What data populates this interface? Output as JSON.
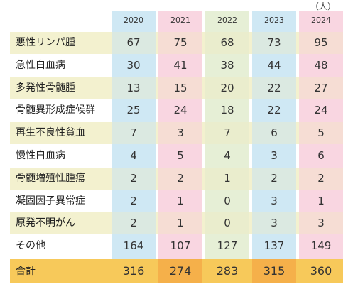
{
  "unit": "（人）",
  "years": [
    "2020",
    "2021",
    "2022",
    "2023",
    "2024"
  ],
  "column_colors": [
    "#cfe8f4",
    "#f9d6e1",
    "#e6efd6",
    "#cfe8f4",
    "#f9d6e1"
  ],
  "band_color": "#f3f1cf",
  "total_colors": [
    "#f7c95a",
    "#f5b04a",
    "#f7c95a",
    "#f5b04a",
    "#f7c95a"
  ],
  "total_label_color": "#f7c95a",
  "rows": [
    {
      "label": "悪性リンパ腫",
      "values": [
        "67",
        "75",
        "68",
        "73",
        "95"
      ]
    },
    {
      "label": "急性白血病",
      "values": [
        "30",
        "41",
        "38",
        "44",
        "48"
      ]
    },
    {
      "label": "多発性骨髄腫",
      "values": [
        "13",
        "15",
        "20",
        "22",
        "27"
      ]
    },
    {
      "label": "骨髄異形成症候群",
      "values": [
        "25",
        "24",
        "18",
        "22",
        "24"
      ]
    },
    {
      "label": "再生不良性貧血",
      "values": [
        "7",
        "3",
        "7",
        "6",
        "5"
      ]
    },
    {
      "label": "慢性白血病",
      "values": [
        "4",
        "5",
        "4",
        "3",
        "6"
      ]
    },
    {
      "label": "骨髄増殖性腫瘍",
      "values": [
        "2",
        "2",
        "1",
        "2",
        "2"
      ]
    },
    {
      "label": "凝固因子異常症",
      "values": [
        "2",
        "1",
        "0",
        "3",
        "1"
      ]
    },
    {
      "label": "原発不明がん",
      "values": [
        "2",
        "1",
        "0",
        "3",
        "3"
      ]
    },
    {
      "label": "その他",
      "values": [
        "164",
        "107",
        "127",
        "137",
        "149"
      ]
    }
  ],
  "total": {
    "label": "合計",
    "values": [
      "316",
      "274",
      "283",
      "315",
      "360"
    ]
  }
}
